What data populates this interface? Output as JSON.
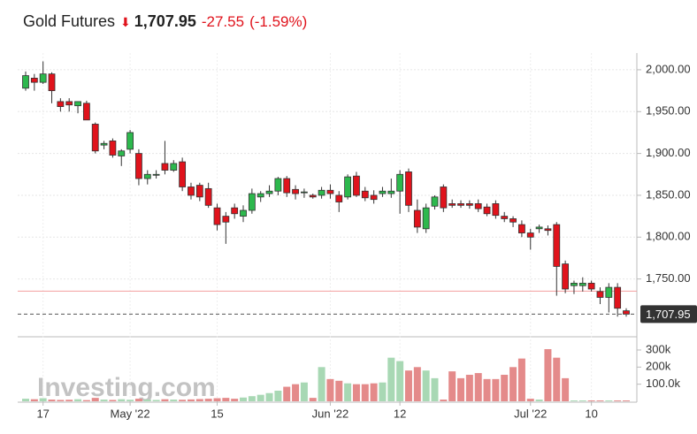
{
  "header": {
    "title": "Gold Futures",
    "price": "1,707.95",
    "change": "-27.55",
    "change_pct": "(-1.59%)"
  },
  "chart_data": {
    "type": "candlestick",
    "watermark": "Investing.com",
    "categories": [
      null,
      null,
      "17",
      null,
      null,
      null,
      null,
      null,
      null,
      null,
      null,
      null,
      "May '22",
      null,
      null,
      null,
      null,
      null,
      null,
      null,
      null,
      null,
      "15",
      null,
      null,
      null,
      null,
      null,
      null,
      null,
      null,
      null,
      null,
      null,
      null,
      "Jun '22",
      null,
      null,
      null,
      null,
      null,
      null,
      null,
      "12",
      null,
      null,
      null,
      null,
      null,
      null,
      null,
      null,
      null,
      null,
      null,
      null,
      null,
      null,
      "Jul '22",
      null,
      null,
      null,
      null,
      null,
      null,
      "10",
      null,
      null,
      null,
      null
    ],
    "open": [
      1978,
      1990,
      1985,
      1995,
      1962,
      1962,
      1957,
      1960,
      1935,
      1910,
      1915,
      1897,
      1905,
      1900,
      1870,
      1874,
      1888,
      1880,
      1890,
      1860,
      1862,
      1858,
      1835,
      1825,
      1835,
      1825,
      1832,
      1848,
      1852,
      1855,
      1870,
      1857,
      1853,
      1850,
      1850,
      1856,
      1850,
      1848,
      1873,
      1855,
      1850,
      1852,
      1852,
      1855,
      1878,
      1832,
      1810,
      1837,
      1860,
      1840,
      1840,
      1840,
      1840,
      1836,
      1840,
      1825,
      1822,
      1815,
      1805,
      1810,
      1810,
      1815,
      1768,
      1742,
      1742,
      1745,
      1735,
      1728,
      1740,
      1712
    ],
    "high": [
      1998,
      1995,
      2010,
      1997,
      1966,
      1966,
      1962,
      1963,
      1937,
      1915,
      1918,
      1905,
      1928,
      1905,
      1880,
      1880,
      1915,
      1892,
      1895,
      1865,
      1865,
      1865,
      1840,
      1830,
      1840,
      1838,
      1858,
      1855,
      1862,
      1872,
      1873,
      1862,
      1858,
      1852,
      1860,
      1863,
      1855,
      1875,
      1878,
      1860,
      1856,
      1860,
      1870,
      1880,
      1882,
      1845,
      1840,
      1850,
      1863,
      1845,
      1844,
      1844,
      1845,
      1840,
      1844,
      1830,
      1825,
      1820,
      1810,
      1815,
      1814,
      1818,
      1772,
      1748,
      1752,
      1748,
      1740,
      1745,
      1745,
      1715
    ],
    "low": [
      1975,
      1975,
      1983,
      1960,
      1950,
      1950,
      1948,
      1940,
      1900,
      1905,
      1895,
      1885,
      1900,
      1862,
      1863,
      1870,
      1875,
      1878,
      1855,
      1845,
      1843,
      1835,
      1808,
      1792,
      1822,
      1818,
      1828,
      1842,
      1848,
      1850,
      1848,
      1845,
      1847,
      1846,
      1846,
      1846,
      1830,
      1845,
      1848,
      1843,
      1840,
      1848,
      1847,
      1828,
      1830,
      1805,
      1805,
      1833,
      1830,
      1835,
      1835,
      1834,
      1830,
      1825,
      1822,
      1818,
      1812,
      1800,
      1785,
      1805,
      1802,
      1730,
      1733,
      1732,
      1735,
      1735,
      1720,
      1710,
      1705,
      1705
    ],
    "close": [
      1993,
      1985,
      1995,
      1975,
      1956,
      1958,
      1962,
      1940,
      1903,
      1912,
      1898,
      1903,
      1925,
      1870,
      1875,
      1875,
      1880,
      1888,
      1860,
      1850,
      1848,
      1838,
      1815,
      1818,
      1828,
      1832,
      1852,
      1852,
      1855,
      1870,
      1853,
      1852,
      1854,
      1848,
      1856,
      1852,
      1842,
      1872,
      1850,
      1847,
      1845,
      1855,
      1855,
      1875,
      1838,
      1812,
      1835,
      1848,
      1835,
      1838,
      1838,
      1838,
      1834,
      1828,
      1826,
      1822,
      1818,
      1805,
      1800,
      1812,
      1808,
      1765,
      1738,
      1745,
      1745,
      1738,
      1728,
      1740,
      1715,
      1707.95
    ],
    "volume": [
      15000,
      12000,
      18000,
      10000,
      8000,
      9000,
      12000,
      7000,
      20000,
      10000,
      8000,
      12000,
      9000,
      15000,
      10000,
      8000,
      12000,
      10000,
      9000,
      11000,
      13000,
      15000,
      18000,
      20000,
      15000,
      22000,
      30000,
      38000,
      48000,
      62000,
      85000,
      100000,
      110000,
      20000,
      200000,
      130000,
      120000,
      105000,
      100000,
      100000,
      105000,
      110000,
      255000,
      235000,
      180000,
      200000,
      180000,
      135000,
      10000,
      175000,
      135000,
      155000,
      165000,
      130000,
      130000,
      155000,
      200000,
      250000,
      15000,
      10000,
      305000,
      255000,
      135000,
      5000,
      5000,
      5000,
      5000,
      5000,
      5000,
      5000
    ],
    "up_color": "#2db84d",
    "down_color": "#e0131c",
    "vol_up_color": "#a8d8b4",
    "vol_down_color": "#e48a8a",
    "prev_close": 1735.5,
    "ylim": [
      1682,
      2020
    ],
    "yticks": [
      {
        "value": 1750,
        "label": "1,750.00"
      },
      {
        "value": 1800,
        "label": "1,800.00"
      },
      {
        "value": 1850,
        "label": "1,850.00"
      },
      {
        "value": 1900,
        "label": "1,900.00"
      },
      {
        "value": 1950,
        "label": "1,950.00"
      },
      {
        "value": 2000,
        "label": "2,000.00"
      }
    ],
    "y2lim": [
      0,
      367000
    ],
    "y2ticks": [
      {
        "value": 100000,
        "label": "100.0k"
      },
      {
        "value": 200000,
        "label": "200k"
      },
      {
        "value": 300000,
        "label": "300k"
      }
    ],
    "grid": true
  }
}
